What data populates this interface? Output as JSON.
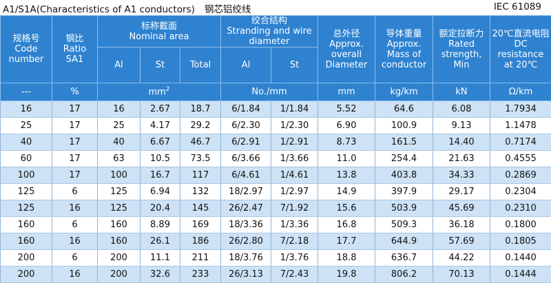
{
  "header": {
    "title_en": "A1/S1A(Characteristics of A1 conductors)",
    "title_cn": "钢芯铝绞线",
    "standard": "IEC 61089"
  },
  "columns": {
    "code": [
      "规格号",
      "Code",
      "number"
    ],
    "ratio": [
      "钢比",
      "Ratio",
      "SA1"
    ],
    "area_group": [
      "标称截面",
      "Nominal area"
    ],
    "area_al": "Al",
    "area_st": "St",
    "area_total": "Total",
    "strand_group": [
      "绞合结构",
      "Stranding and wire",
      "diameter"
    ],
    "strand_al": "Al",
    "strand_st": "St",
    "diameter": [
      "总外径",
      "Approx.",
      "overall",
      "Diameter"
    ],
    "mass": [
      "导体重量",
      "Approx.",
      "Mass of",
      "conductor"
    ],
    "strength": [
      "额定拉断力",
      "Rated",
      "strength,",
      "Min"
    ],
    "resistance": [
      "20℃直流电阻",
      "DC",
      "resistance",
      "at 20℃"
    ]
  },
  "units": {
    "code": "---",
    "ratio": "%",
    "area": "mm",
    "area_sup": "2",
    "strand": "No./mm",
    "diameter": "mm",
    "mass": "kg/km",
    "strength": "kN",
    "resistance": "Ω/km"
  },
  "rows": [
    [
      "16",
      "17",
      "16",
      "2.67",
      "18.7",
      "6/1.84",
      "1/1.84",
      "5.52",
      "64.6",
      "6.08",
      "1.7934"
    ],
    [
      "25",
      "17",
      "25",
      "4.17",
      "29.2",
      "6/2.30",
      "1/2.30",
      "6.90",
      "100.9",
      "9.13",
      "1.1478"
    ],
    [
      "40",
      "17",
      "40",
      "6.67",
      "46.7",
      "6/2.91",
      "1/2.91",
      "8.73",
      "161.5",
      "14.40",
      "0.7174"
    ],
    [
      "60",
      "17",
      "63",
      "10.5",
      "73.5",
      "6/3.66",
      "1/3.66",
      "11.0",
      "254.4",
      "21.63",
      "0.4555"
    ],
    [
      "100",
      "17",
      "100",
      "16.7",
      "117",
      "6/4.61",
      "1/4.61",
      "13.8",
      "403.8",
      "34.33",
      "0.2869"
    ],
    [
      "125",
      "6",
      "125",
      "6.94",
      "132",
      "18/2.97",
      "1/2.97",
      "14.9",
      "397.9",
      "29.17",
      "0.2304"
    ],
    [
      "125",
      "16",
      "125",
      "20.4",
      "145",
      "26/2.47",
      "7/1.92",
      "15.6",
      "503.9",
      "45.69",
      "0.2310"
    ],
    [
      "160",
      "6",
      "160",
      "8.89",
      "169",
      "18/3.36",
      "1/3.36",
      "16.8",
      "509.3",
      "36.18",
      "0.1800"
    ],
    [
      "160",
      "16",
      "160",
      "26.1",
      "186",
      "26/2.80",
      "7/2.18",
      "17.7",
      "644.9",
      "57.69",
      "0.1805"
    ],
    [
      "200",
      "6",
      "200",
      "11.1",
      "211",
      "18/3.76",
      "1/3.76",
      "18.8",
      "636.7",
      "44.22",
      "0.1440"
    ],
    [
      "200",
      "16",
      "200",
      "32.6",
      "233",
      "26/3.13",
      "7/2.43",
      "19.8",
      "806.2",
      "70.13",
      "0.1444"
    ]
  ],
  "colors": {
    "header_bg": "#2e82d0",
    "stripe": "#cde2f5"
  }
}
